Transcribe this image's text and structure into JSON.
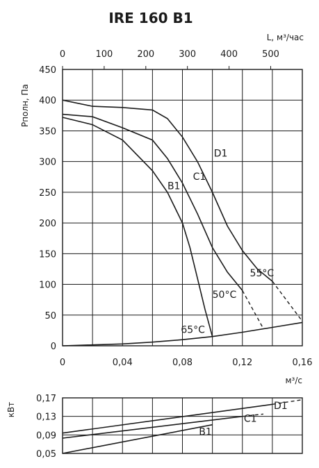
{
  "chart_data": [
    {
      "type": "line",
      "title": "IRE 160 B1",
      "xlabel": "м³/с",
      "ylabel": "Pполн, Па",
      "xlim": [
        0,
        0.16
      ],
      "ylim": [
        0,
        450
      ],
      "x_ticks": [
        "0",
        "0,04",
        "0,08",
        "0,12",
        "0,16"
      ],
      "y_ticks": [
        "0",
        "50",
        "100",
        "150",
        "200",
        "250",
        "300",
        "350",
        "400",
        "450"
      ],
      "secondary_x": {
        "label": "L, м³/час",
        "lim": [
          0,
          576
        ],
        "ticks": [
          "0",
          "100",
          "200",
          "300",
          "400",
          "500"
        ]
      },
      "grid": true,
      "series": [
        {
          "name": "B1",
          "x": [
            0,
            0.02,
            0.04,
            0.06,
            0.07,
            0.08,
            0.085,
            0.09,
            0.095,
            0.1
          ],
          "y": [
            372,
            360,
            335,
            285,
            250,
            200,
            160,
            110,
            60,
            15
          ]
        },
        {
          "name": "C1",
          "x": [
            0,
            0.02,
            0.04,
            0.06,
            0.07,
            0.08,
            0.09,
            0.1,
            0.11,
            0.12
          ],
          "y": [
            377,
            373,
            355,
            335,
            305,
            265,
            215,
            160,
            120,
            90
          ]
        },
        {
          "name": "D1",
          "x": [
            0,
            0.02,
            0.04,
            0.06,
            0.07,
            0.08,
            0.09,
            0.1,
            0.11,
            0.12,
            0.13,
            0.14
          ],
          "y": [
            400,
            390,
            388,
            384,
            370,
            340,
            300,
            250,
            195,
            155,
            125,
            105
          ]
        },
        {
          "name": "",
          "x": [
            0,
            0.02,
            0.04,
            0.06,
            0.08,
            0.1,
            0.12,
            0.14,
            0.16
          ],
          "y": [
            0,
            1.5,
            3,
            6,
            10,
            15,
            22,
            30,
            38
          ]
        }
      ],
      "extensions": [
        {
          "of": "C1",
          "x": [
            0.12,
            0.134
          ],
          "y": [
            90,
            28
          ]
        },
        {
          "of": "D1",
          "x": [
            0.14,
            0.16
          ],
          "y": [
            105,
            40
          ]
        }
      ],
      "annotations": [
        {
          "text": "D1",
          "x": 0.101,
          "y": 308
        },
        {
          "text": "C1",
          "x": 0.087,
          "y": 270
        },
        {
          "text": "B1",
          "x": 0.07,
          "y": 255
        },
        {
          "text": "55°С",
          "x": 0.125,
          "y": 113
        },
        {
          "text": "50°С",
          "x": 0.1,
          "y": 78
        },
        {
          "text": "65°С",
          "x": 0.079,
          "y": 21
        }
      ]
    },
    {
      "type": "line",
      "ylabel": "кВт",
      "xlim": [
        0,
        0.16
      ],
      "ylim": [
        0.05,
        0.17
      ],
      "y_ticks": [
        "0,05",
        "0,09",
        "0,13",
        "0,17"
      ],
      "grid": true,
      "series": [
        {
          "name": "B1",
          "x": [
            0,
            0.1
          ],
          "y": [
            0.05,
            0.112
          ]
        },
        {
          "name": "C1",
          "x": [
            0,
            0.12
          ],
          "y": [
            0.083,
            0.13
          ]
        },
        {
          "name": "D1",
          "x": [
            0,
            0.14
          ],
          "y": [
            0.094,
            0.156
          ]
        }
      ],
      "extensions": [
        {
          "of": "C1",
          "x": [
            0.12,
            0.134
          ],
          "y": [
            0.13,
            0.135
          ]
        },
        {
          "of": "D1",
          "x": [
            0.14,
            0.16
          ],
          "y": [
            0.156,
            0.166
          ]
        }
      ],
      "annotations": [
        {
          "text": "D1",
          "x": 0.141,
          "y": 0.146
        },
        {
          "text": "C1",
          "x": 0.121,
          "y": 0.118
        },
        {
          "text": "B1",
          "x": 0.091,
          "y": 0.09
        }
      ]
    }
  ]
}
